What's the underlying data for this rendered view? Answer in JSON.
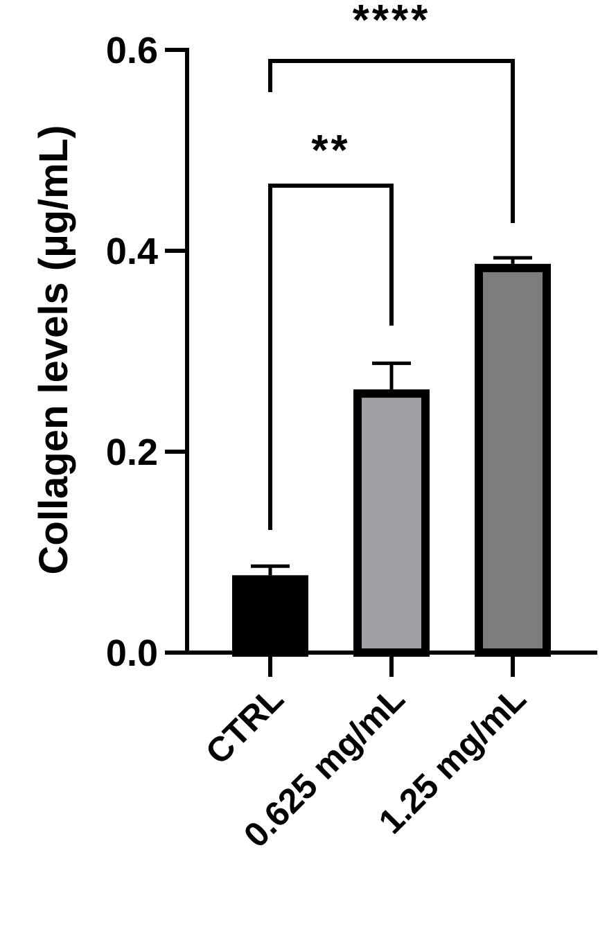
{
  "chart_data": {
    "type": "bar",
    "ylabel": "Collagen levels (µg/mL)",
    "xlabel": "",
    "ylim": [
      0,
      0.6
    ],
    "yticks": [
      "0.0",
      "0.2",
      "0.4",
      "0.6"
    ],
    "grid": false,
    "categories": [
      "CTRL",
      "0.625 mg/mL",
      "1.25 mg/mL"
    ],
    "values": [
      0.077,
      0.262,
      0.387
    ],
    "errors": [
      0.009,
      0.026,
      0.006
    ],
    "bar_colors": [
      "#000000",
      "#a0a0a4",
      "#7d7d7d"
    ],
    "significance": [
      {
        "from": "CTRL",
        "to": "0.625 mg/mL",
        "label": "**"
      },
      {
        "from": "CTRL",
        "to": "1.25 mg/mL",
        "label": "****"
      }
    ]
  }
}
